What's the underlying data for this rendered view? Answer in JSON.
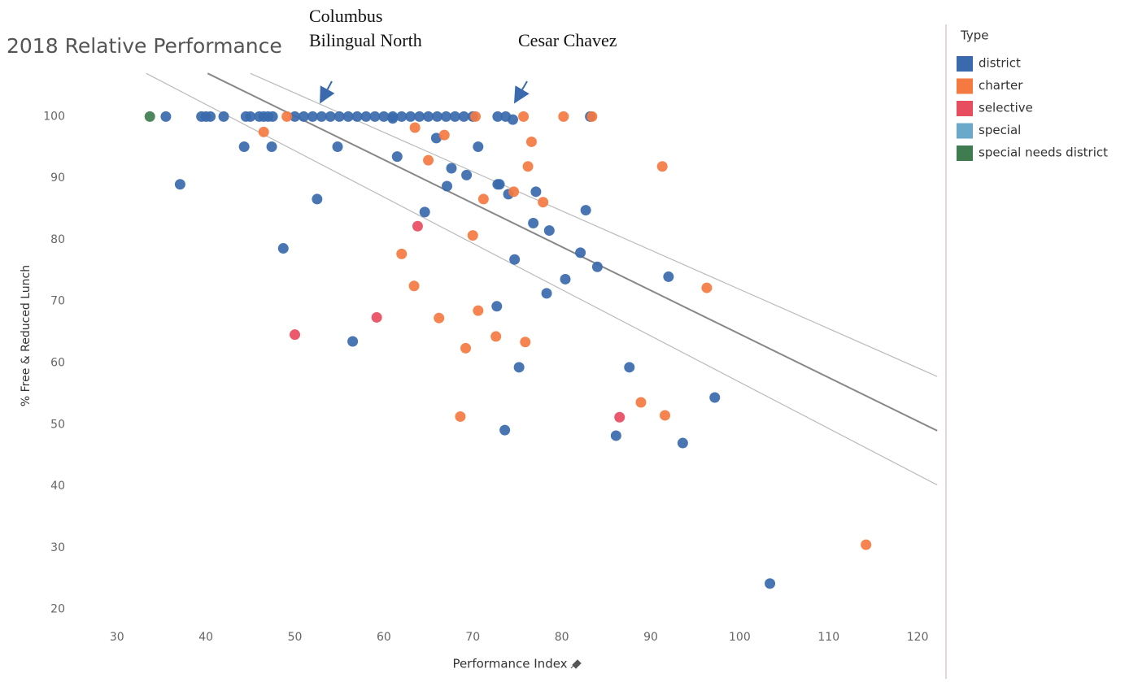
{
  "chart_data": {
    "type": "scatter",
    "title": "2018 Relative Performance",
    "x_label": "Performance Index",
    "y_label": "% Free & Reduced Lunch",
    "xlim": [
      26,
      122
    ],
    "ylim": [
      16,
      111
    ],
    "xticks": [
      30,
      40,
      50,
      60,
      70,
      80,
      90,
      100,
      110,
      120
    ],
    "yticks": [
      20,
      30,
      40,
      50,
      60,
      70,
      80,
      90,
      100
    ],
    "legend_title": "Type",
    "annotations": [
      {
        "lines": [
          "Columbus",
          "Bilingual North"
        ]
      },
      {
        "lines": [
          "Cesar Chavez"
        ]
      }
    ],
    "series": [
      {
        "name": "district",
        "color": "#3a6aad",
        "x": [
          35.5,
          39.5,
          40,
          40.5,
          42,
          44.5,
          45,
          46,
          46.5,
          47,
          47.5,
          50,
          51,
          52,
          53,
          54,
          55,
          56,
          57,
          58,
          59,
          60,
          61,
          62,
          63,
          64,
          65,
          66,
          67,
          68,
          69,
          70,
          72.8,
          73.7,
          83.2,
          74.5,
          61,
          44.3,
          47.4,
          37.1,
          52.5,
          48.7,
          54.8,
          61.5,
          65.9,
          67.6,
          69.3,
          70.6,
          67.1,
          64.6,
          72.8,
          73.0,
          74.0,
          77.1,
          76.8,
          78.6,
          82.7,
          82.1,
          84.0,
          74.7,
          80.4,
          78.3,
          72.7,
          56.5,
          75.2,
          87.6,
          73.6,
          86.1,
          93.6,
          97.2,
          92.0,
          103.4
        ],
        "values": [
          100,
          100,
          100,
          100,
          100,
          100,
          100,
          100,
          100,
          100,
          100,
          100,
          100,
          100,
          100,
          100,
          100,
          100,
          100,
          100,
          100,
          100,
          100,
          100,
          100,
          100,
          100,
          100,
          100,
          100,
          100,
          100,
          100,
          100,
          100,
          99.5,
          99.7,
          95.1,
          95.1,
          89,
          86.6,
          78.6,
          95.1,
          93.5,
          96.5,
          91.6,
          90.5,
          95.1,
          88.7,
          84.5,
          89,
          89,
          87.4,
          87.8,
          82.7,
          81.5,
          84.8,
          77.9,
          75.6,
          76.8,
          73.6,
          71.3,
          69.2,
          63.5,
          59.3,
          59.3,
          49.1,
          48.2,
          47.0,
          54.4,
          74.0,
          24.2
        ]
      },
      {
        "name": "charter",
        "color": "#f47a42",
        "x": [
          49.1,
          70.3,
          75.7,
          80.2,
          83.4,
          46.5,
          66.8,
          63.5,
          65.0,
          76.6,
          76.2,
          91.3,
          74.6,
          71.2,
          77.9,
          70.0,
          62.0,
          63.4,
          96.3,
          70.6,
          66.2,
          72.6,
          75.9,
          69.2,
          68.6,
          88.9,
          91.6,
          114.2
        ],
        "values": [
          100,
          100,
          100,
          100,
          100,
          97.5,
          97.0,
          98.2,
          92.9,
          95.9,
          91.9,
          91.9,
          87.8,
          86.6,
          86.1,
          80.7,
          77.7,
          72.5,
          72.2,
          68.5,
          67.3,
          64.3,
          63.4,
          62.4,
          51.3,
          53.6,
          51.5,
          30.5
        ]
      },
      {
        "name": "selective",
        "color": "#e84c5f",
        "x": [
          63.8,
          59.2,
          50.0,
          86.5
        ],
        "values": [
          82.2,
          67.4,
          64.6,
          51.2
        ]
      },
      {
        "name": "special",
        "color": "#6aa9c9",
        "x": [],
        "values": []
      },
      {
        "name": "special needs district",
        "color": "#3f7d50",
        "x": [
          33.7
        ],
        "values": [
          100
        ]
      }
    ],
    "trend_lines": [
      {
        "color": "#888888",
        "x": [
          40.2,
          122.2
        ],
        "values": [
          107,
          49
        ]
      },
      {
        "color": "#bbbbbb",
        "x": [
          45.0,
          122.2
        ],
        "values": [
          107,
          57.8
        ]
      },
      {
        "color": "#bbbbbb",
        "x": [
          33.3,
          122.2
        ],
        "values": [
          107,
          40.2
        ]
      }
    ]
  }
}
